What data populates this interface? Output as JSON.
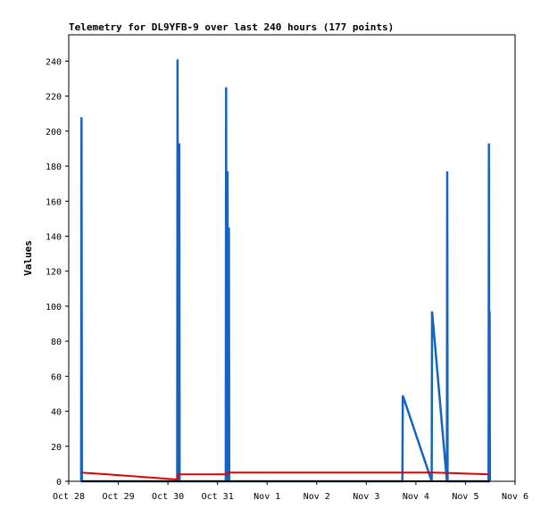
{
  "chart_data": {
    "type": "line",
    "title": "Telemetry for DL9YFB-9 over last 240 hours (177 points)",
    "xlabel": "",
    "ylabel": "Values",
    "ylim": [
      0,
      255
    ],
    "xlim_days": [
      "Oct 28",
      "Nov 6"
    ],
    "x_ticks": [
      "Oct 28",
      "Oct 29",
      "Oct 30",
      "Oct 31",
      "Nov 1",
      "Nov 2",
      "Nov 3",
      "Nov 4",
      "Nov 5",
      "Nov 6"
    ],
    "y_ticks": [
      0,
      20,
      40,
      60,
      80,
      100,
      120,
      140,
      160,
      180,
      200,
      220,
      240
    ],
    "grid": false,
    "legend": "none",
    "series": [
      {
        "color": "#1565c0",
        "style": "spikes",
        "points": [
          [
            "Oct 28 06:00",
            0
          ],
          [
            "Oct 28 06:10",
            208
          ],
          [
            "Oct 28 06:20",
            0
          ],
          [
            "Oct 30 04:30",
            0
          ],
          [
            "Oct 30 04:40",
            241
          ],
          [
            "Oct 30 04:50",
            0
          ],
          [
            "Oct 30 05:20",
            0
          ],
          [
            "Oct 30 05:30",
            193
          ],
          [
            "Oct 30 05:40",
            0
          ],
          [
            "Oct 31 04:00",
            0
          ],
          [
            "Oct 31 04:10",
            225
          ],
          [
            "Oct 31 04:20",
            0
          ],
          [
            "Oct 31 04:40",
            0
          ],
          [
            "Oct 31 04:50",
            177
          ],
          [
            "Oct 31 05:00",
            0
          ],
          [
            "Oct 31 05:20",
            0
          ],
          [
            "Oct 31 05:30",
            145
          ],
          [
            "Oct 31 05:40",
            0
          ],
          [
            "Nov 3 17:30",
            0
          ],
          [
            "Nov 3 17:40",
            49
          ],
          [
            "Nov 4 07:40",
            0
          ],
          [
            "Nov 4 07:50",
            97
          ],
          [
            "Nov 4 08:30",
            88
          ],
          [
            "Nov 4 15:00",
            0
          ],
          [
            "Nov 4 15:10",
            177
          ],
          [
            "Nov 4 15:20",
            0
          ],
          [
            "Nov 5 11:10",
            0
          ],
          [
            "Nov 5 11:20",
            193
          ],
          [
            "Nov 5 11:30",
            0
          ],
          [
            "Nov 5 11:40",
            97
          ],
          [
            "Nov 5 11:50",
            0
          ]
        ]
      },
      {
        "color": "#e00000",
        "style": "line",
        "points": [
          [
            "Oct 28 06:00",
            5
          ],
          [
            "Oct 29 00:00",
            3.5
          ],
          [
            "Oct 30 04:30",
            1
          ],
          [
            "Oct 30 05:00",
            4
          ],
          [
            "Oct 31 04:00",
            4
          ],
          [
            "Oct 31 05:00",
            5
          ],
          [
            "Nov 4 08:00",
            5
          ],
          [
            "Nov 4 23:00",
            4.5
          ],
          [
            "Nov 5 11:30",
            4
          ]
        ]
      },
      {
        "color": "#000000",
        "style": "line",
        "points": [
          [
            "Oct 28 06:00",
            0
          ],
          [
            "Nov 5 11:50",
            0
          ]
        ]
      }
    ]
  }
}
